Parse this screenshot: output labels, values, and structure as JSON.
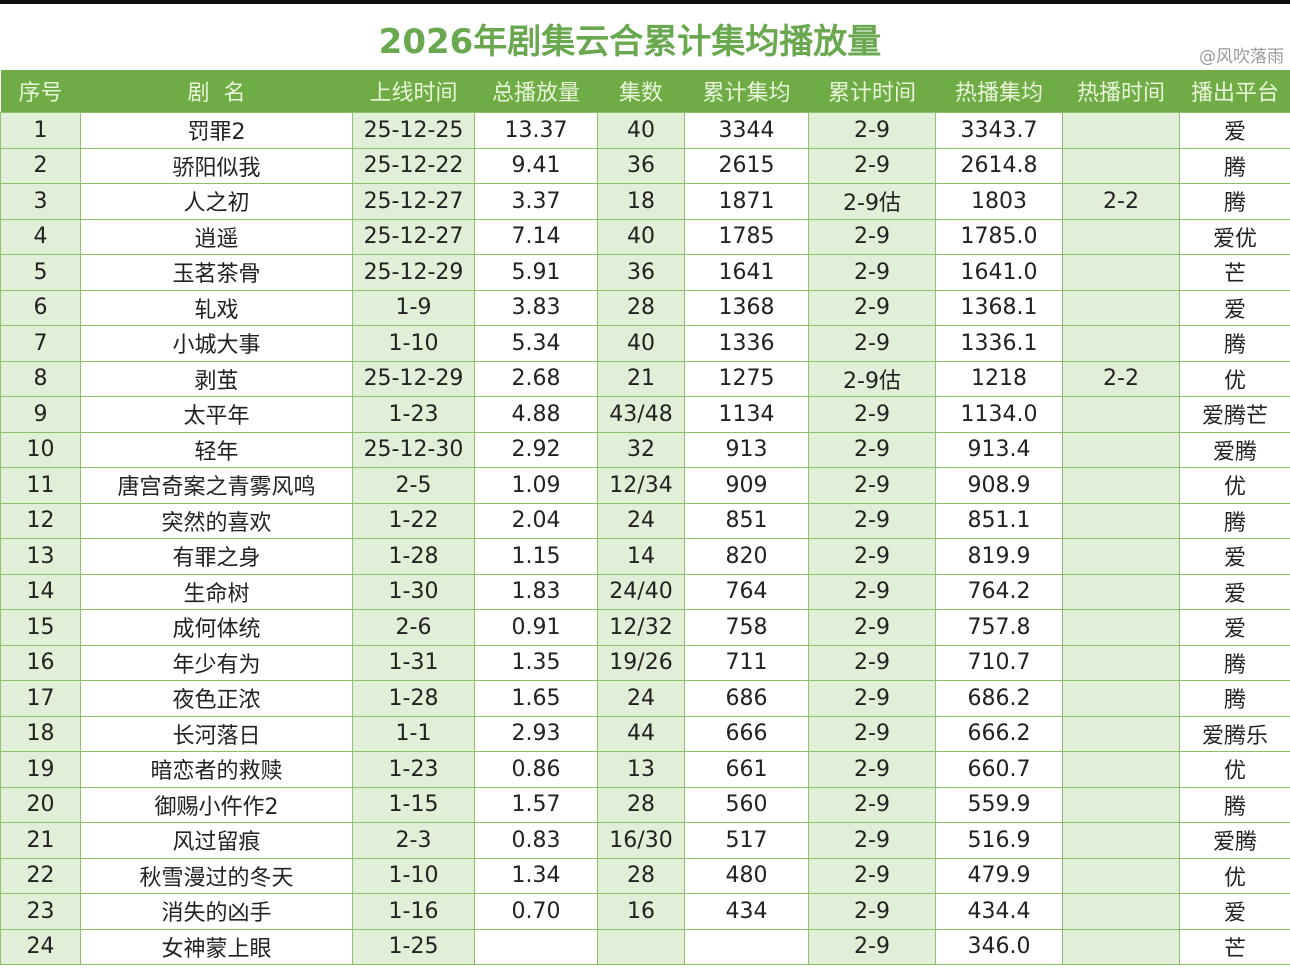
{
  "title": "2026年剧集云合累计集均播放量",
  "watermark": "@风吹落雨",
  "columns": [
    "序号",
    "剧  名",
    "上线时间",
    "总播放量",
    "集数",
    "累计集均",
    "累计时间",
    "热播集均",
    "热播时间",
    "播出平台"
  ],
  "colors": {
    "header_bg": "#6fac46",
    "title": "#6aa84f",
    "shade": "#e2efd8",
    "border": "#8cbf6a"
  },
  "rows": [
    [
      "1",
      "罚罪2",
      "25-12-25",
      "13.37",
      "40",
      "3344",
      "2-9",
      "3343.7",
      "",
      "爱"
    ],
    [
      "2",
      "骄阳似我",
      "25-12-22",
      "9.41",
      "36",
      "2615",
      "2-9",
      "2614.8",
      "",
      "腾"
    ],
    [
      "3",
      "人之初",
      "25-12-27",
      "3.37",
      "18",
      "1871",
      "2-9估",
      "1803",
      "2-2",
      "腾"
    ],
    [
      "4",
      "逍遥",
      "25-12-27",
      "7.14",
      "40",
      "1785",
      "2-9",
      "1785.0",
      "",
      "爱优"
    ],
    [
      "5",
      "玉茗茶骨",
      "25-12-29",
      "5.91",
      "36",
      "1641",
      "2-9",
      "1641.0",
      "",
      "芒"
    ],
    [
      "6",
      "轧戏",
      "1-9",
      "3.83",
      "28",
      "1368",
      "2-9",
      "1368.1",
      "",
      "爱"
    ],
    [
      "7",
      "小城大事",
      "1-10",
      "5.34",
      "40",
      "1336",
      "2-9",
      "1336.1",
      "",
      "腾"
    ],
    [
      "8",
      "剥茧",
      "25-12-29",
      "2.68",
      "21",
      "1275",
      "2-9估",
      "1218",
      "2-2",
      "优"
    ],
    [
      "9",
      "太平年",
      "1-23",
      "4.88",
      "43/48",
      "1134",
      "2-9",
      "1134.0",
      "",
      "爱腾芒"
    ],
    [
      "10",
      "轻年",
      "25-12-30",
      "2.92",
      "32",
      "913",
      "2-9",
      "913.4",
      "",
      "爱腾"
    ],
    [
      "11",
      "唐宫奇案之青雾风鸣",
      "2-5",
      "1.09",
      "12/34",
      "909",
      "2-9",
      "908.9",
      "",
      "优"
    ],
    [
      "12",
      "突然的喜欢",
      "1-22",
      "2.04",
      "24",
      "851",
      "2-9",
      "851.1",
      "",
      "腾"
    ],
    [
      "13",
      "有罪之身",
      "1-28",
      "1.15",
      "14",
      "820",
      "2-9",
      "819.9",
      "",
      "爱"
    ],
    [
      "14",
      "生命树",
      "1-30",
      "1.83",
      "24/40",
      "764",
      "2-9",
      "764.2",
      "",
      "爱"
    ],
    [
      "15",
      "成何体统",
      "2-6",
      "0.91",
      "12/32",
      "758",
      "2-9",
      "757.8",
      "",
      "爱"
    ],
    [
      "16",
      "年少有为",
      "1-31",
      "1.35",
      "19/26",
      "711",
      "2-9",
      "710.7",
      "",
      "腾"
    ],
    [
      "17",
      "夜色正浓",
      "1-28",
      "1.65",
      "24",
      "686",
      "2-9",
      "686.2",
      "",
      "腾"
    ],
    [
      "18",
      "长河落日",
      "1-1",
      "2.93",
      "44",
      "666",
      "2-9",
      "666.2",
      "",
      "爱腾乐"
    ],
    [
      "19",
      "暗恋者的救赎",
      "1-23",
      "0.86",
      "13",
      "661",
      "2-9",
      "660.7",
      "",
      "优"
    ],
    [
      "20",
      "御赐小仵作2",
      "1-15",
      "1.57",
      "28",
      "560",
      "2-9",
      "559.9",
      "",
      "腾"
    ],
    [
      "21",
      "风过留痕",
      "2-3",
      "0.83",
      "16/30",
      "517",
      "2-9",
      "516.9",
      "",
      "爱腾"
    ],
    [
      "22",
      "秋雪漫过的冬天",
      "1-10",
      "1.34",
      "28",
      "480",
      "2-9",
      "479.9",
      "",
      "优"
    ],
    [
      "23",
      "消失的凶手",
      "1-16",
      "0.70",
      "16",
      "434",
      "2-9",
      "434.4",
      "",
      "爱"
    ],
    [
      "24",
      "女神蒙上眼",
      "1-25",
      "",
      "",
      "",
      "2-9",
      "346.0",
      "",
      "芒"
    ]
  ]
}
